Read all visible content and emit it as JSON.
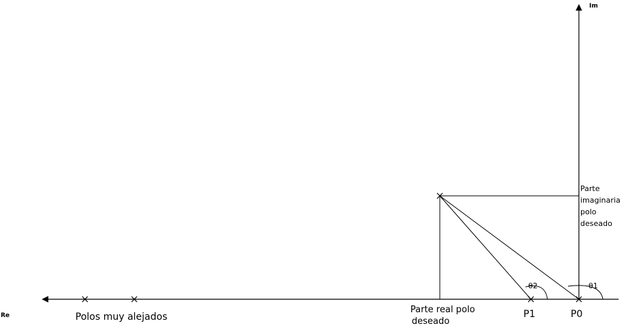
{
  "axes": {
    "real_label": "Re",
    "imag_label": "Im"
  },
  "labels": {
    "far_poles": "Polos muy alejados",
    "real_part_line1": "Parte real polo",
    "real_part_line2": "deseado",
    "imag_part_lines": [
      "Parte",
      "imaginaria",
      "polo",
      "deseado"
    ],
    "p1": "P1",
    "p0": "P0",
    "theta1": "θ1",
    "theta2": "θ2"
  }
}
